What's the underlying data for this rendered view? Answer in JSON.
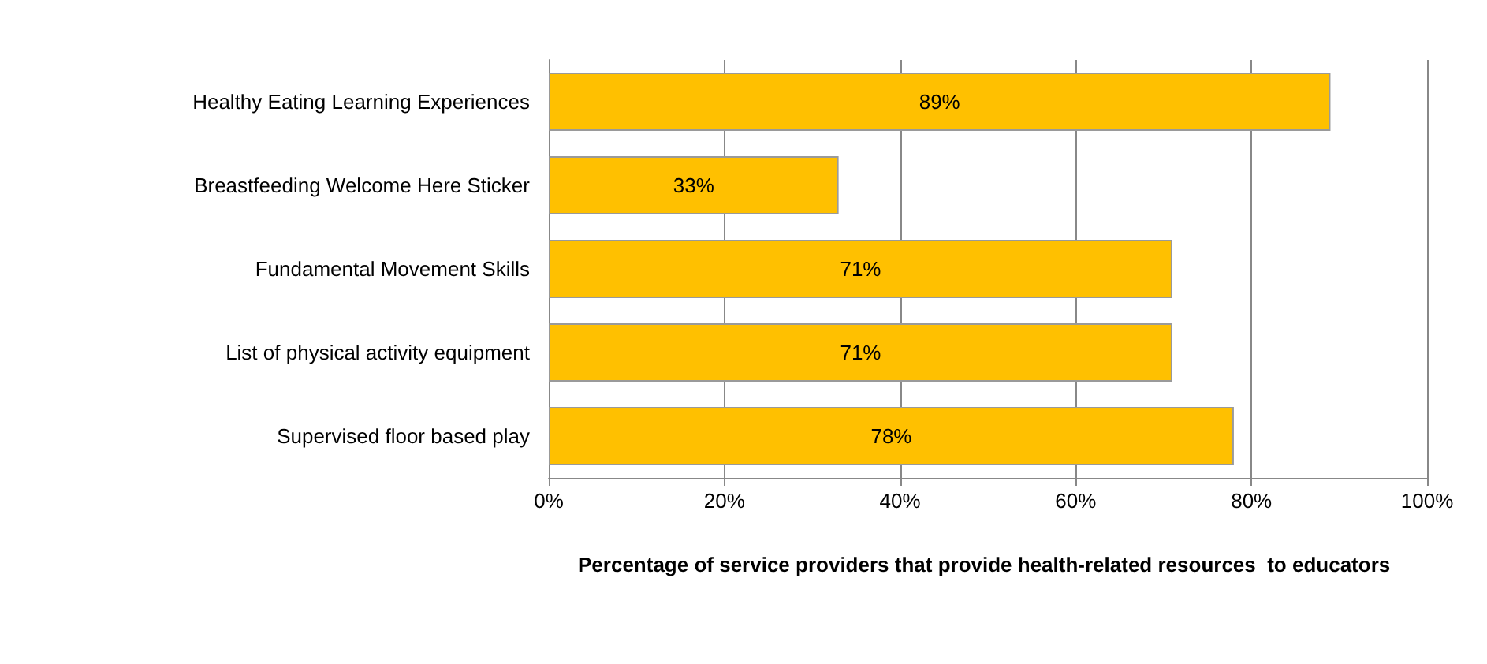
{
  "chart_data": {
    "type": "bar",
    "orientation": "horizontal",
    "xlabel": "Percentage of service providers that provide health-related resources  to educators",
    "categories": [
      "Healthy Eating Learning Experiences",
      "Breastfeeding Welcome Here Sticker",
      "Fundamental Movement Skills",
      "List of physical activity equipment",
      "Supervised floor based play"
    ],
    "values": [
      89,
      33,
      71,
      71,
      78
    ],
    "value_labels": [
      "89%",
      "33%",
      "71%",
      "71%",
      "78%"
    ],
    "color": "#ffc000",
    "xlim": [
      0,
      100
    ],
    "xticks": [
      {
        "value": 0,
        "label": "0%"
      },
      {
        "value": 20,
        "label": "20%"
      },
      {
        "value": 40,
        "label": "40%"
      },
      {
        "value": 60,
        "label": "60%"
      },
      {
        "value": 80,
        "label": "80%"
      },
      {
        "value": 100,
        "label": "100%"
      }
    ],
    "grid": "x"
  }
}
